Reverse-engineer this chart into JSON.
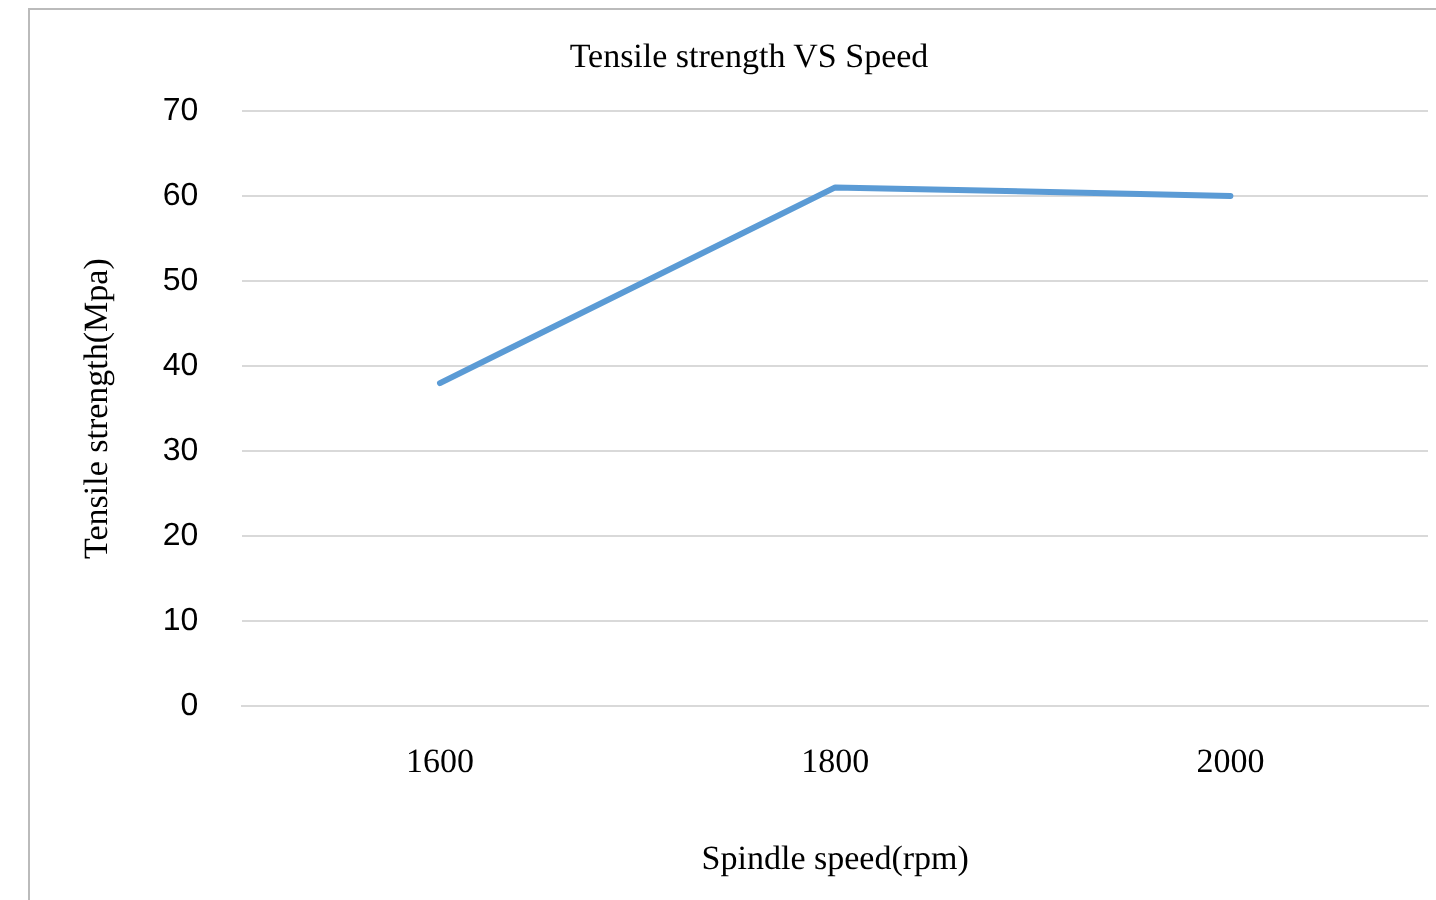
{
  "chart_data": {
    "type": "line",
    "title": "Tensile strength VS Speed",
    "xlabel": "Spindle speed(rpm)",
    "ylabel": "Tensile strength(Mpa)",
    "categories": [
      "1600",
      "1800",
      "2000"
    ],
    "series": [
      {
        "color": "#5b9bd5",
        "values": [
          38,
          61,
          60
        ]
      }
    ],
    "ylim": [
      0,
      70
    ],
    "yticks": [
      0,
      10,
      20,
      30,
      40,
      50,
      60,
      70
    ],
    "grid": "y",
    "legend": false,
    "marker": "none",
    "line_style": "solid"
  }
}
